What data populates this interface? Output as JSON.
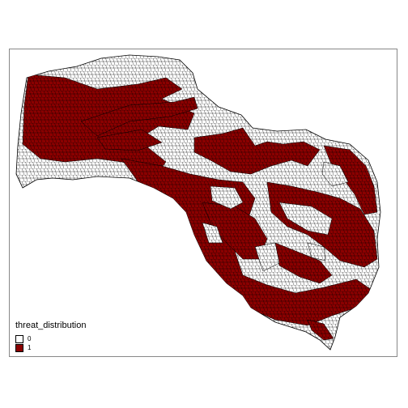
{
  "map": {
    "legend": {
      "title": "threat_distribution",
      "items": [
        {
          "label": "0",
          "color": "#ffffff"
        },
        {
          "label": "1",
          "color": "#8b0000"
        }
      ]
    },
    "colors": {
      "threat": "#8b0000",
      "background": "#ffffff",
      "outline": "#000000",
      "frame": "#888888"
    }
  }
}
